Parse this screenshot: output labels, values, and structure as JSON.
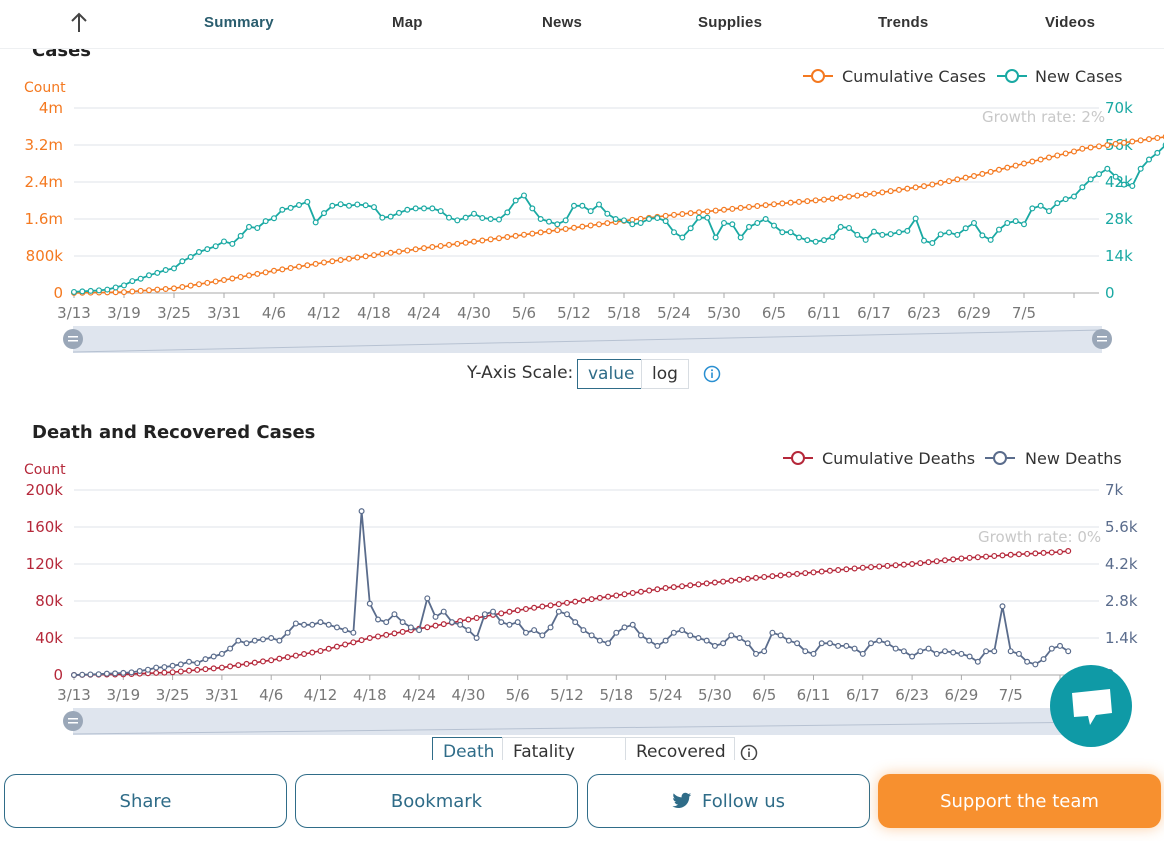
{
  "nav": {
    "tabs": [
      "Summary",
      "Map",
      "News",
      "Supplies",
      "Trends",
      "Videos"
    ],
    "active": "Summary"
  },
  "chart1": {
    "title": "Cases",
    "y_left_label": "Count",
    "legend": [
      "Cumulative Cases",
      "New Cases"
    ],
    "annotation": "Growth rate: 2%",
    "y_left_ticks": [
      "4m",
      "3.2m",
      "2.4m",
      "1.6m",
      "800k",
      "0"
    ],
    "y_right_ticks": [
      "70k",
      "56k",
      "42k",
      "28k",
      "14k",
      "0"
    ],
    "x_ticks": [
      "3/13",
      "3/19",
      "3/25",
      "3/31",
      "4/6",
      "4/12",
      "4/18",
      "4/24",
      "4/30",
      "5/6",
      "5/12",
      "5/18",
      "5/24",
      "5/30",
      "6/5",
      "6/11",
      "6/17",
      "6/23",
      "6/29",
      "7/5"
    ],
    "colors": {
      "cumulative": "#f47920",
      "new": "#1aa9a3",
      "left_axis": "#f47920",
      "right_axis": "#1aa9a3"
    }
  },
  "scale_control": {
    "label": "Y-Axis Scale:",
    "options": [
      "value",
      "log"
    ],
    "selected": "value"
  },
  "chart2": {
    "title": "Death and Recovered Cases",
    "y_left_label": "Count",
    "legend": [
      "Cumulative Deaths",
      "New Deaths"
    ],
    "annotation": "Growth rate: 0%",
    "y_left_ticks": [
      "200k",
      "160k",
      "120k",
      "80k",
      "40k",
      "0"
    ],
    "y_right_ticks": [
      "7k",
      "5.6k",
      "4.2k",
      "2.8k",
      "1.4k",
      "0"
    ],
    "x_ticks": [
      "3/13",
      "3/19",
      "3/25",
      "3/31",
      "4/6",
      "4/12",
      "4/18",
      "4/24",
      "4/30",
      "5/6",
      "5/12",
      "5/18",
      "5/24",
      "5/30",
      "6/5",
      "6/11",
      "6/17",
      "6/23",
      "6/29",
      "7/5"
    ],
    "colors": {
      "cumulative": "#b5283a",
      "new": "#5a6c8c",
      "left_axis": "#b5283a",
      "right_axis": "#5a6c8c"
    }
  },
  "death_tabs": {
    "options": [
      "Death",
      "Fatality Rate",
      "Recovered"
    ],
    "selected": "Death"
  },
  "bottom": {
    "share": "Share",
    "bookmark": "Bookmark",
    "follow": "Follow us",
    "support": "Support the team"
  },
  "chart_data": [
    {
      "type": "line",
      "title": "Cases",
      "x_start": "3/13",
      "x_end": "7/10",
      "series": [
        {
          "name": "Cumulative Cases",
          "axis": "left",
          "anchors": [
            [
              0,
              2000
            ],
            [
              6,
              20000
            ],
            [
              12,
              100000
            ],
            [
              18,
              280000
            ],
            [
              24,
              480000
            ],
            [
              30,
              660000
            ],
            [
              36,
              820000
            ],
            [
              42,
              970000
            ],
            [
              48,
              1110000
            ],
            [
              54,
              1260000
            ],
            [
              60,
              1410000
            ],
            [
              66,
              1560000
            ],
            [
              72,
              1690000
            ],
            [
              78,
              1800000
            ],
            [
              84,
              1920000
            ],
            [
              90,
              2020000
            ],
            [
              96,
              2150000
            ],
            [
              102,
              2310000
            ],
            [
              108,
              2530000
            ],
            [
              114,
              2800000
            ],
            [
              120,
              3060000
            ],
            [
              121,
              3120000
            ]
          ]
        },
        {
          "name": "New Cases",
          "axis": "right",
          "values": [
            400,
            600,
            800,
            1000,
            1300,
            2100,
            2900,
            4500,
            5400,
            6700,
            7600,
            8700,
            9300,
            12000,
            13600,
            15500,
            16600,
            17700,
            19500,
            18600,
            21600,
            25000,
            24600,
            27200,
            28300,
            31500,
            32200,
            33300,
            34500,
            26700,
            30200,
            33000,
            33600,
            33000,
            33500,
            33200,
            32500,
            28500,
            28900,
            30300,
            31500,
            32000,
            32000,
            32000,
            31000,
            28500,
            27500,
            28500,
            30000,
            28400,
            28000,
            27800,
            30500,
            35000,
            36900,
            32000,
            28000,
            27000,
            26000,
            27500,
            33000,
            33000,
            31000,
            33500,
            30000,
            28000,
            27500,
            26000,
            26500,
            28000,
            28400,
            27200,
            23000,
            21000,
            24500,
            28500,
            28500,
            21000,
            26500,
            26000,
            21000,
            25000,
            26500,
            28000,
            25500,
            23000,
            23000,
            21000,
            20000,
            19400,
            20000,
            21200,
            25000,
            24600,
            22000,
            20100,
            23200,
            22000,
            22300,
            23000,
            23500,
            28200,
            19800,
            18900,
            22200,
            22900,
            22000,
            24500,
            26500,
            21800,
            20100,
            24000,
            26500,
            27200,
            26000,
            32000,
            33000,
            31000,
            34000,
            35500,
            36500,
            40000,
            43000,
            45000,
            47000,
            44000,
            41000,
            40500,
            47000,
            50500,
            53000,
            56000,
            57000,
            51000,
            48000,
            52000,
            50500,
            47000,
            44000,
            56000,
            58500,
            60500,
            62500,
            64000,
            60000
          ]
        }
      ],
      "y_left_range": [
        0,
        4000000
      ],
      "y_right_range": [
        0,
        70000
      ],
      "legend_position": "top-right",
      "grid": true
    },
    {
      "type": "line",
      "title": "Death and Recovered Cases",
      "x_start": "3/13",
      "x_end": "7/10",
      "series": [
        {
          "name": "Cumulative Deaths",
          "axis": "left",
          "anchors": [
            [
              0,
              50
            ],
            [
              6,
              700
            ],
            [
              12,
              3000
            ],
            [
              18,
              8000
            ],
            [
              24,
              16000
            ],
            [
              30,
              26000
            ],
            [
              33,
              33000
            ],
            [
              36,
              40000
            ],
            [
              42,
              50000
            ],
            [
              48,
              60000
            ],
            [
              54,
              70000
            ],
            [
              60,
              78000
            ],
            [
              66,
              86000
            ],
            [
              72,
              94000
            ],
            [
              78,
              100000
            ],
            [
              84,
              106000
            ],
            [
              90,
              111000
            ],
            [
              96,
              116000
            ],
            [
              102,
              120000
            ],
            [
              108,
              126000
            ],
            [
              114,
              130000
            ],
            [
              120,
              133000
            ],
            [
              121,
              134000
            ]
          ]
        },
        {
          "name": "New Deaths",
          "axis": "right",
          "values": [
            0,
            10,
            20,
            30,
            50,
            60,
            80,
            100,
            150,
            200,
            280,
            300,
            350,
            400,
            500,
            450,
            600,
            700,
            800,
            1000,
            1300,
            1200,
            1300,
            1350,
            1400,
            1300,
            1600,
            1950,
            1900,
            1900,
            2000,
            1900,
            1800,
            1700,
            1600,
            6200,
            2700,
            2100,
            2000,
            2300,
            2000,
            1800,
            1700,
            2900,
            2200,
            2400,
            2000,
            1900,
            1700,
            1400,
            2300,
            2400,
            2000,
            1900,
            2000,
            1600,
            1700,
            1500,
            1800,
            2400,
            2300,
            2000,
            1700,
            1500,
            1300,
            1200,
            1600,
            1800,
            1900,
            1500,
            1300,
            1100,
            1300,
            1600,
            1700,
            1500,
            1400,
            1300,
            1100,
            1200,
            1500,
            1400,
            1200,
            800,
            900,
            1600,
            1500,
            1300,
            1200,
            900,
            800,
            1200,
            1200,
            1100,
            1100,
            1000,
            800,
            1200,
            1300,
            1200,
            1000,
            900,
            700,
            900,
            1000,
            800,
            900,
            850,
            800,
            700,
            500,
            900,
            900,
            2600,
            900,
            800,
            500,
            400,
            600,
            1000,
            1100,
            900
          ]
        }
      ],
      "y_left_range": [
        0,
        200000
      ],
      "y_right_range": [
        0,
        7000
      ],
      "legend_position": "top-right",
      "grid": true
    }
  ]
}
